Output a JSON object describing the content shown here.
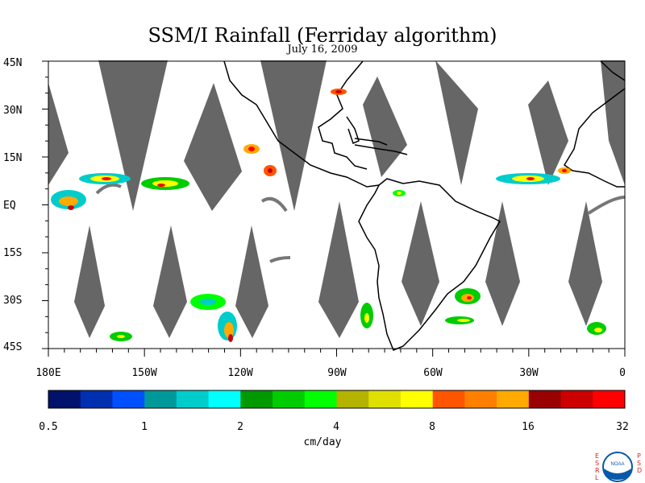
{
  "title": "SSM/I Rainfall (Ferriday algorithm)",
  "subtitle": "July 16, 2009",
  "lat_labels": [
    "45N",
    "30N",
    "15N",
    "EQ",
    "15S",
    "30S",
    "45S"
  ],
  "lon_labels": [
    "180E",
    "150W",
    "120W",
    "90W",
    "60W",
    "30W",
    "0"
  ],
  "colorbar": {
    "colors": [
      "#00126b",
      "#0030b0",
      "#0050ff",
      "#00999a",
      "#00cccc",
      "#00ffff",
      "#009900",
      "#00cc00",
      "#00ff00",
      "#b3b300",
      "#e0e000",
      "#ffff00",
      "#ff5500",
      "#ff8000",
      "#ffaa00",
      "#990000",
      "#cc0000",
      "#ff0000"
    ],
    "tick_labels": [
      "0.5",
      "1",
      "2",
      "4",
      "8",
      "16",
      "32"
    ],
    "units": "cm/day"
  },
  "logo": {
    "left_letters": "ESRL",
    "right_letters": "PSD",
    "center_text": "NOAA"
  },
  "colors": {
    "no_data": "#666666",
    "land": "#000000",
    "background": "#ffffff"
  }
}
